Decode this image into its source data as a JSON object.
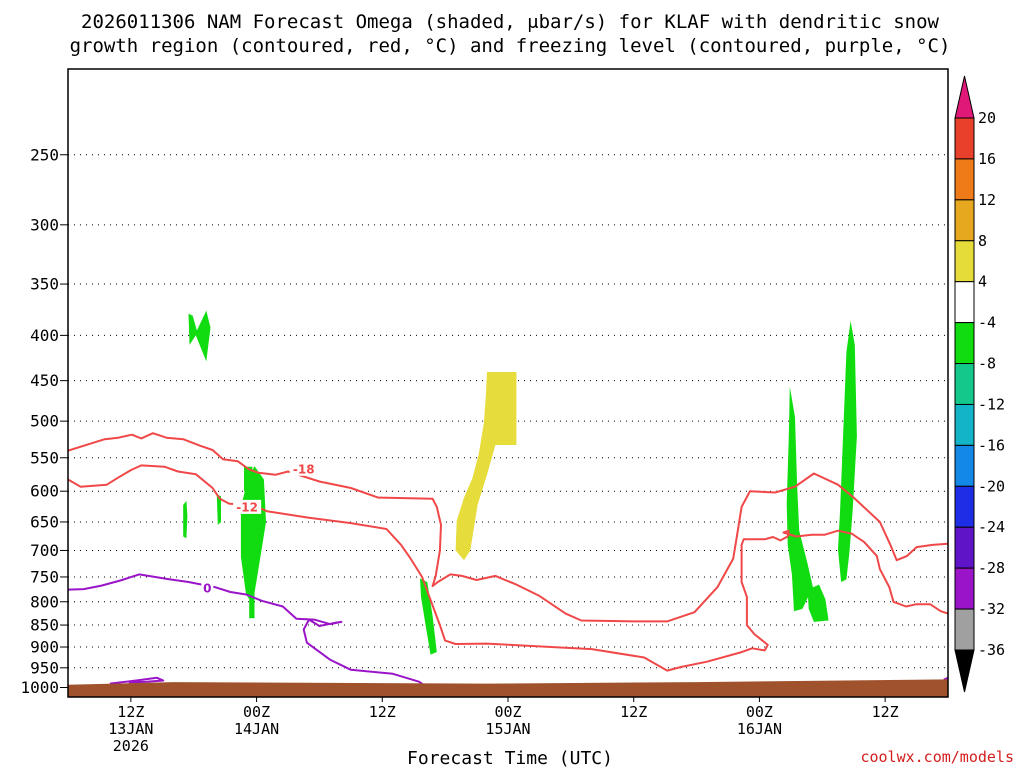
{
  "title": {
    "line1": "2026011306 NAM Forecast Omega (shaded, μbar/s) for KLAF with dendritic snow",
    "line2": "growth region (contoured, red, °C) and freezing level (contoured, purple, °C)"
  },
  "xlabel": "Forecast Time (UTC)",
  "credit": "coolwx.com/models",
  "colors": {
    "frame": "#000000",
    "gridline": "#000000",
    "ground": "#a0522d",
    "dgz_contour": "#f04848",
    "freezing_contour": "#9a14c8",
    "omega_green": "#10dc10",
    "omega_yellow": "#e6dc3c"
  },
  "chart_data": {
    "type": "heatmap",
    "title": "2026011306 NAM Forecast Omega (shaded, μbar/s) for KLAF with dendritic snow growth region (contoured, red, °C) and freezing level (contoured, purple, °C)",
    "xlabel": "Forecast Time (UTC)",
    "ylabel": "",
    "x_axis": {
      "unit": "hours_from_2026011306",
      "range": [
        0,
        84
      ],
      "ticks": [
        {
          "x": 6,
          "line1": "12Z",
          "line2": "13JAN",
          "line3": "2026"
        },
        {
          "x": 18,
          "line1": "00Z",
          "line2": "14JAN",
          "line3": ""
        },
        {
          "x": 30,
          "line1": "12Z",
          "line2": "",
          "line3": ""
        },
        {
          "x": 42,
          "line1": "00Z",
          "line2": "15JAN",
          "line3": ""
        },
        {
          "x": 54,
          "line1": "12Z",
          "line2": "",
          "line3": ""
        },
        {
          "x": 66,
          "line1": "00Z",
          "line2": "16JAN",
          "line3": ""
        },
        {
          "x": 78,
          "line1": "12Z",
          "line2": "",
          "line3": ""
        }
      ]
    },
    "y_axis": {
      "unit": "hPa",
      "scale": "log-pressure",
      "range": [
        1025,
        200
      ],
      "ticks": [
        250,
        300,
        350,
        400,
        450,
        500,
        550,
        600,
        650,
        700,
        750,
        800,
        850,
        900,
        950,
        1000
      ],
      "tick_labels": [
        "250",
        "300",
        "350",
        "400",
        "450",
        "500",
        "550",
        "600",
        "650",
        "700",
        "750",
        "800",
        "850",
        "900",
        "950",
        "1000"
      ],
      "grid": true
    },
    "surface_pressure": [
      [
        0,
        993
      ],
      [
        10,
        986
      ],
      [
        40,
        990
      ],
      [
        60,
        986
      ],
      [
        84,
        979
      ]
    ],
    "omega_regions": [
      {
        "value_range": [
          -8,
          -4
        ],
        "color": "#10dc10",
        "points": [
          [
            11.5,
            378
          ],
          [
            11.9,
            380
          ],
          [
            12.3,
            395
          ],
          [
            13.2,
            375
          ],
          [
            13.6,
            392
          ],
          [
            13.2,
            428
          ],
          [
            12.2,
            400
          ],
          [
            11.6,
            410
          ]
        ]
      },
      {
        "value_range": [
          -8,
          -4
        ],
        "color": "#10dc10",
        "points": [
          [
            16.5,
            625
          ],
          [
            17.2,
            580
          ],
          [
            17.8,
            562
          ],
          [
            18.7,
            582
          ],
          [
            18.9,
            650
          ],
          [
            18.3,
            720
          ],
          [
            17.8,
            782
          ],
          [
            17.3,
            795
          ],
          [
            17.0,
            785
          ],
          [
            16.5,
            712
          ]
        ]
      },
      {
        "value_range": [
          -8,
          -4
        ],
        "color": "#10dc10",
        "points": [
          [
            16.8,
            563
          ],
          [
            17.6,
            563
          ],
          [
            17.6,
            600
          ],
          [
            16.8,
            600
          ]
        ]
      },
      {
        "value_range": [
          -8,
          -4
        ],
        "color": "#10dc10",
        "points": [
          [
            17.3,
            780
          ],
          [
            17.8,
            780
          ],
          [
            17.8,
            835
          ],
          [
            17.3,
            835
          ]
        ]
      },
      {
        "value_range": [
          -8,
          -4
        ],
        "color": "#10dc10",
        "points": [
          [
            11.0,
            622
          ],
          [
            11.3,
            615
          ],
          [
            11.4,
            640
          ],
          [
            11.3,
            678
          ],
          [
            11.0,
            675
          ]
        ]
      },
      {
        "value_range": [
          -8,
          -4
        ],
        "color": "#10dc10",
        "points": [
          [
            14.2,
            605
          ],
          [
            14.6,
            608
          ],
          [
            14.6,
            650
          ],
          [
            14.3,
            655
          ]
        ]
      },
      {
        "value_range": [
          -8,
          -4
        ],
        "color": "#10dc10",
        "points": [
          [
            33.6,
            753
          ],
          [
            34.3,
            760
          ],
          [
            34.8,
            830
          ],
          [
            35.2,
            912
          ],
          [
            34.6,
            918
          ],
          [
            34.1,
            845
          ],
          [
            33.7,
            790
          ]
        ]
      },
      {
        "value_range": [
          -8,
          -4
        ],
        "color": "#10dc10",
        "points": [
          [
            68.9,
            457
          ],
          [
            69.4,
            495
          ],
          [
            69.6,
            590
          ],
          [
            69.8,
            665
          ],
          [
            70.6,
            725
          ],
          [
            71.1,
            770
          ],
          [
            70.1,
            815
          ],
          [
            69.3,
            820
          ],
          [
            69.1,
            745
          ],
          [
            68.7,
            690
          ],
          [
            68.6,
            620
          ],
          [
            68.8,
            520
          ]
        ]
      },
      {
        "value_range": [
          -8,
          -4
        ],
        "color": "#10dc10",
        "points": [
          [
            70.6,
            775
          ],
          [
            71.7,
            765
          ],
          [
            72.3,
            795
          ],
          [
            72.6,
            840
          ],
          [
            71.2,
            843
          ],
          [
            70.7,
            815
          ]
        ]
      },
      {
        "value_range": [
          -8,
          -4
        ],
        "color": "#10dc10",
        "points": [
          [
            74.3,
            418
          ],
          [
            74.7,
            385
          ],
          [
            75.1,
            410
          ],
          [
            75.3,
            520
          ],
          [
            74.9,
            630
          ],
          [
            74.6,
            702
          ],
          [
            74.3,
            755
          ],
          [
            73.8,
            760
          ],
          [
            73.5,
            698
          ],
          [
            73.7,
            630
          ],
          [
            73.9,
            550
          ]
        ]
      }
    ],
    "omega_regions_positive": [
      {
        "value_range": [
          4,
          8
        ],
        "color": "#e6dc3c",
        "points": [
          [
            40.0,
            440
          ],
          [
            42.8,
            440
          ],
          [
            42.8,
            532
          ],
          [
            40.8,
            532
          ],
          [
            40.0,
            575
          ],
          [
            39.1,
            622
          ],
          [
            38.4,
            700
          ],
          [
            37.8,
            718
          ],
          [
            37.0,
            700
          ],
          [
            37.1,
            648
          ],
          [
            37.8,
            610
          ],
          [
            38.6,
            580
          ],
          [
            39.2,
            545
          ],
          [
            39.7,
            502
          ],
          [
            39.9,
            465
          ]
        ]
      }
    ],
    "contours": [
      {
        "name": "-18",
        "color": "#f04848",
        "label": "-18",
        "label_at": [
          22.5,
          566
        ],
        "points": [
          [
            0,
            540
          ],
          [
            3.5,
            524
          ],
          [
            4.8,
            522
          ],
          [
            6.1,
            518
          ],
          [
            7.0,
            523
          ],
          [
            8.1,
            516
          ],
          [
            9.4,
            522
          ],
          [
            11.0,
            524
          ],
          [
            12.6,
            533
          ],
          [
            13.8,
            539
          ],
          [
            14.8,
            552
          ],
          [
            16.2,
            555
          ],
          [
            17.3,
            567
          ],
          [
            18.2,
            572
          ],
          [
            19.8,
            575
          ],
          [
            21.0,
            570
          ],
          [
            24.0,
            585
          ],
          [
            27.0,
            595
          ],
          [
            29.6,
            610
          ],
          [
            34.8,
            612
          ],
          [
            35.2,
            625
          ],
          [
            35.6,
            655
          ],
          [
            35.5,
            700
          ],
          [
            35.1,
            748
          ],
          [
            34.8,
            768
          ],
          [
            35.3,
            760
          ],
          [
            36.5,
            745
          ],
          [
            37.6,
            748
          ],
          [
            39.0,
            756
          ],
          [
            40.8,
            748
          ],
          [
            42.8,
            765
          ],
          [
            45.0,
            788
          ],
          [
            47.5,
            825
          ],
          [
            49.0,
            840
          ],
          [
            54.0,
            842
          ],
          [
            57.2,
            842
          ],
          [
            59.8,
            822
          ],
          [
            62.0,
            770
          ],
          [
            63.5,
            715
          ],
          [
            63.8,
            680
          ],
          [
            64.3,
            625
          ],
          [
            65.1,
            600
          ],
          [
            67.5,
            602
          ],
          [
            69.4,
            593
          ],
          [
            71.2,
            573
          ],
          [
            73.5,
            590
          ],
          [
            75.0,
            610
          ],
          [
            77.5,
            650
          ],
          [
            78.5,
            690
          ],
          [
            79.1,
            718
          ],
          [
            80.1,
            710
          ],
          [
            81.0,
            694
          ],
          [
            82.5,
            690
          ],
          [
            84.0,
            688
          ]
        ]
      },
      {
        "name": "-12",
        "color": "#f04848",
        "label": "-12",
        "label_at": [
          17.1,
          625
        ],
        "points": [
          [
            0,
            582
          ],
          [
            1.2,
            593
          ],
          [
            3.7,
            590
          ],
          [
            4.7,
            580
          ],
          [
            6.0,
            568
          ],
          [
            7.0,
            561
          ],
          [
            9.2,
            563
          ],
          [
            10.5,
            570
          ],
          [
            12.2,
            574
          ],
          [
            13.8,
            595
          ],
          [
            14.5,
            612
          ],
          [
            15.4,
            620
          ],
          [
            17.6,
            622
          ],
          [
            19.0,
            632
          ],
          [
            23.0,
            643
          ],
          [
            27.0,
            652
          ],
          [
            30.4,
            662
          ],
          [
            31.8,
            690
          ],
          [
            32.7,
            715
          ],
          [
            33.8,
            750
          ],
          [
            34.5,
            790
          ],
          [
            35.5,
            850
          ],
          [
            36.0,
            885
          ],
          [
            37.0,
            893
          ],
          [
            40.0,
            892
          ],
          [
            50.0,
            905
          ],
          [
            55.0,
            925
          ],
          [
            57.2,
            957
          ],
          [
            58.5,
            948
          ],
          [
            61.0,
            935
          ],
          [
            64.3,
            912
          ],
          [
            65.3,
            903
          ],
          [
            66.5,
            908
          ],
          [
            66.8,
            895
          ],
          [
            65.5,
            870
          ],
          [
            64.8,
            850
          ],
          [
            64.8,
            820
          ],
          [
            64.8,
            790
          ],
          [
            64.3,
            760
          ],
          [
            64.3,
            690
          ],
          [
            64.5,
            680
          ],
          [
            66.5,
            680
          ],
          [
            67.3,
            676
          ],
          [
            68.0,
            682
          ],
          [
            68.7,
            675
          ],
          [
            68.8,
            665
          ],
          [
            68.3,
            668
          ],
          [
            69.5,
            675
          ],
          [
            71.0,
            672
          ],
          [
            72.2,
            672
          ],
          [
            73.5,
            665
          ],
          [
            74.8,
            670
          ],
          [
            76.0,
            685
          ],
          [
            77.2,
            710
          ],
          [
            77.5,
            735
          ],
          [
            78.4,
            770
          ],
          [
            78.8,
            800
          ],
          [
            80.0,
            810
          ],
          [
            81.0,
            805
          ],
          [
            82.3,
            805
          ],
          [
            83.3,
            820
          ],
          [
            84.0,
            825
          ]
        ]
      },
      {
        "name": "0",
        "color": "#9a14c8",
        "label": "0",
        "label_at": [
          13.3,
          772
        ],
        "points": [
          [
            0,
            775
          ],
          [
            1.5,
            774
          ],
          [
            3.2,
            767
          ],
          [
            5.0,
            757
          ],
          [
            6.8,
            745
          ],
          [
            9.5,
            754
          ],
          [
            11.5,
            760
          ],
          [
            14.0,
            770
          ],
          [
            15.5,
            780
          ],
          [
            17.0,
            785
          ],
          [
            18.5,
            798
          ],
          [
            20.5,
            810
          ],
          [
            21.8,
            836
          ],
          [
            23.5,
            838
          ],
          [
            25.0,
            848
          ],
          [
            26.1,
            843
          ],
          [
            25.5,
            845
          ],
          [
            24.0,
            852
          ],
          [
            23.0,
            838
          ],
          [
            22.5,
            860
          ],
          [
            22.8,
            890
          ],
          [
            25.0,
            930
          ],
          [
            27.0,
            955
          ],
          [
            31.0,
            965
          ],
          [
            33.5,
            985
          ],
          [
            34.0,
            994
          ]
        ]
      },
      {
        "name": "0b",
        "color": "#9a14c8",
        "label": "",
        "label_at": null,
        "points": [
          [
            4.0,
            990
          ],
          [
            6.5,
            982
          ],
          [
            8.5,
            975
          ],
          [
            9.1,
            982
          ],
          [
            7.5,
            985
          ],
          [
            5.8,
            987
          ]
        ]
      },
      {
        "name": "0c",
        "color": "#9a14c8",
        "label": "",
        "label_at": null,
        "points": [
          [
            83.6,
            980
          ],
          [
            84.0,
            975
          ]
        ]
      }
    ],
    "colorbar": {
      "labels": [
        "20",
        "16",
        "12",
        "8",
        "4",
        "-4",
        "-8",
        "-12",
        "-16",
        "-20",
        "-24",
        "-28",
        "-32",
        "-36"
      ],
      "bands": [
        {
          "color": "#e01878"
        },
        {
          "color": "#e8402a"
        },
        {
          "color": "#ef7a18"
        },
        {
          "color": "#e5a81e"
        },
        {
          "color": "#e5dc3a"
        },
        {
          "color": "#ffffff"
        },
        {
          "color": "#10dc10"
        },
        {
          "color": "#14c88c"
        },
        {
          "color": "#14b4c8"
        },
        {
          "color": "#1488e6"
        },
        {
          "color": "#1e2ee6"
        },
        {
          "color": "#6014c8"
        },
        {
          "color": "#9a14c8"
        },
        {
          "color": "#a0a0a0"
        },
        {
          "color": "#000000"
        }
      ]
    }
  }
}
